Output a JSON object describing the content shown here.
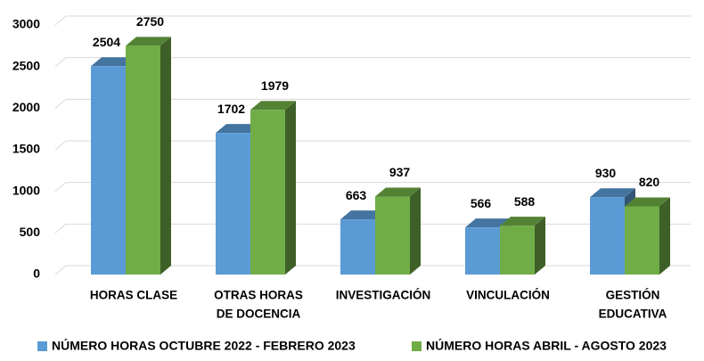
{
  "chart_data": {
    "type": "bar3d",
    "categories": [
      [
        "HORAS CLASE"
      ],
      [
        "OTRAS HORAS",
        "DE DOCENCIA"
      ],
      [
        "INVESTIGACIÓN"
      ],
      [
        "VINCULACIÓN"
      ],
      [
        "GESTIÓN",
        "EDUCATIVA"
      ]
    ],
    "series": [
      {
        "name": "NÚMERO HORAS OCTUBRE 2022 - FEBRERO 2023",
        "color": "#5b9bd5",
        "values": [
          2504,
          1702,
          663,
          566,
          930
        ]
      },
      {
        "name": "NÚMERO HORAS ABRIL - AGOSTO 2023",
        "color": "#70ad47",
        "values": [
          2750,
          1979,
          937,
          588,
          820
        ]
      }
    ],
    "ylim": [
      0,
      3000
    ],
    "yticks": [
      0,
      500,
      1000,
      1500,
      2000,
      2500,
      3000
    ],
    "grid": true,
    "legend": "bottom"
  }
}
